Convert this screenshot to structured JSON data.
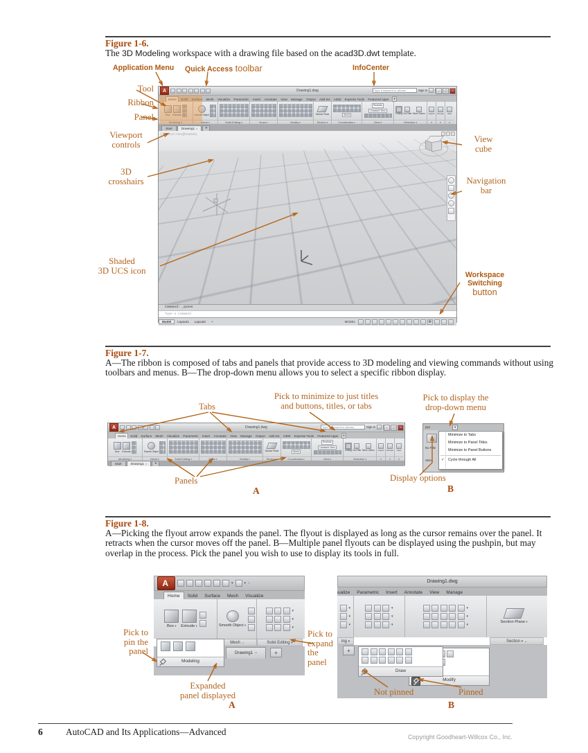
{
  "figure6": {
    "title": "Figure 1-6.",
    "caption_pre": "The ",
    "caption_sans1": "3D Modeling",
    "caption_mid": " workspace with a drawing file based on the ",
    "caption_sans2": "acad3D.dwt",
    "caption_post": " template.",
    "callout_application_menu": "Application Menu",
    "callout_quick_access": "Quick Access",
    "callout_quick_access_suffix": " toolbar",
    "callout_infocenter": "InfoCenter",
    "callout_tool": "Tool",
    "callout_ribbon": "Ribbon",
    "callout_panel": "Panel",
    "callout_viewport_l1": "Viewport",
    "callout_viewport_l2": "controls",
    "callout_crosshairs_l1": "3D",
    "callout_crosshairs_l2": "crosshairs",
    "callout_ucs_l1": "Shaded",
    "callout_ucs_l2": "3D UCS icon",
    "callout_viewcube_l1": "View",
    "callout_viewcube_l2": "cube",
    "callout_navbar_l1": "Navigation",
    "callout_navbar_l2": "bar",
    "callout_workspace_l1": "Workspace",
    "callout_workspace_l2": "Switching",
    "callout_workspace_l3": "button"
  },
  "acad": {
    "window_title": "Drawing1.dwg",
    "search_placeholder": "Type a keyword or phrase",
    "sign_in": "Sign In",
    "tabs": [
      "Home",
      "Solid",
      "Surface",
      "Mesh",
      "Visualize",
      "Parametric",
      "Insert",
      "Annotate",
      "View",
      "Manage",
      "Output",
      "Add-ins",
      "A360",
      "Express Tools",
      "Featured Apps"
    ],
    "panels": {
      "modeling": "Modeling",
      "mesh": "Mesh",
      "solid_editing": "Solid Editing",
      "draw": "Draw",
      "modify": "Modify",
      "section": "Section",
      "coordinates": "Coordinates",
      "view": "View",
      "selection": "Selection"
    },
    "buttons": {
      "box": "Box",
      "extrude": "Extrude",
      "smooth_object": "Smooth Object",
      "section_plane": "Section Plane",
      "culling": "Culling",
      "no_filter": "No Filter",
      "move_gizmo": "Move Gizmo",
      "layers": "Layers",
      "groups": "Groups",
      "view": "View",
      "realistic": "Realistic",
      "unsaved_view": "Unsaved View",
      "world": "World"
    },
    "file_tabs": {
      "start": "Start",
      "drawing": "Drawing1"
    },
    "viewport_controls_text": "[-][Custom View][Realistic]",
    "command_history": "Command: _qsave",
    "command_prompt": "Type a command",
    "layout_tabs": [
      "Model",
      "Layout1",
      "Layout2"
    ],
    "status_model": "MODEL"
  },
  "figure7": {
    "title": "Figure 1-7.",
    "caption": "A—The ribbon is composed of tabs and panels that provide access to 3D modeling and viewing commands without using toolbars and menus. B—The drop-down menu allows you to select a specific ribbon display.",
    "label_tabs": "Tabs",
    "label_panels": "Panels",
    "minimize_l1": "Pick to minimize to just titles",
    "minimize_l2": "and buttons, titles, or tabs",
    "display_l1": "Pick to display the",
    "display_l2": "drop-down menu",
    "label_display_options": "Display options",
    "label_a": "A",
    "label_b": "B",
    "menu_items": [
      "Minimize to Tabs",
      "Minimize to Panel Titles",
      "Minimize to Panel Buttons"
    ],
    "menu_cycle": "Cycle through All",
    "fragment_apps": "pps",
    "fragment_no_filter": "No Filte",
    "fragment_selection": "Selec"
  },
  "figure8": {
    "title": "Figure 1-8.",
    "caption": "A—Picking the flyout arrow expands the panel. The flyout is displayed as long as the cursor remains over the panel. It retracts when the cursor moves off the panel. B—Multiple panel flyouts can be displayed using the pushpin, but may overlap in the process. Pick the panel you wish to use to display its tools in full.",
    "pick_pin_l1": "Pick to",
    "pick_pin_l2": "pin the",
    "pick_pin_l3": "panel",
    "expanded_l1": "Expanded",
    "expanded_l2": "panel displayed",
    "pick_expand_l1": "Pick to",
    "pick_expand_l2": "expand",
    "pick_expand_l3": "the",
    "pick_expand_l4": "panel",
    "label_not_pinned": "Not pinned",
    "label_pinned": "Pinned",
    "label_a": "A",
    "label_b": "B",
    "b_tabs": [
      "Visualize",
      "Parametric",
      "Insert",
      "Annotate",
      "View",
      "Manage"
    ],
    "fragment_panel": "ing",
    "expanded_draw": "Draw",
    "expanded_modify": "Modify"
  },
  "footer": {
    "page_number": "6",
    "book_title": "AutoCAD and Its Applications—Advanced",
    "copyright": "Copyright Goodheart-Willcox Co., Inc."
  },
  "glyphs": {
    "dropdown": "▾",
    "collapse": "⌄",
    "close": "×",
    "plus": "+",
    "check": "✓",
    "app_letter": "A",
    "gear": "⚙",
    "min": "–",
    "max": "▢"
  }
}
